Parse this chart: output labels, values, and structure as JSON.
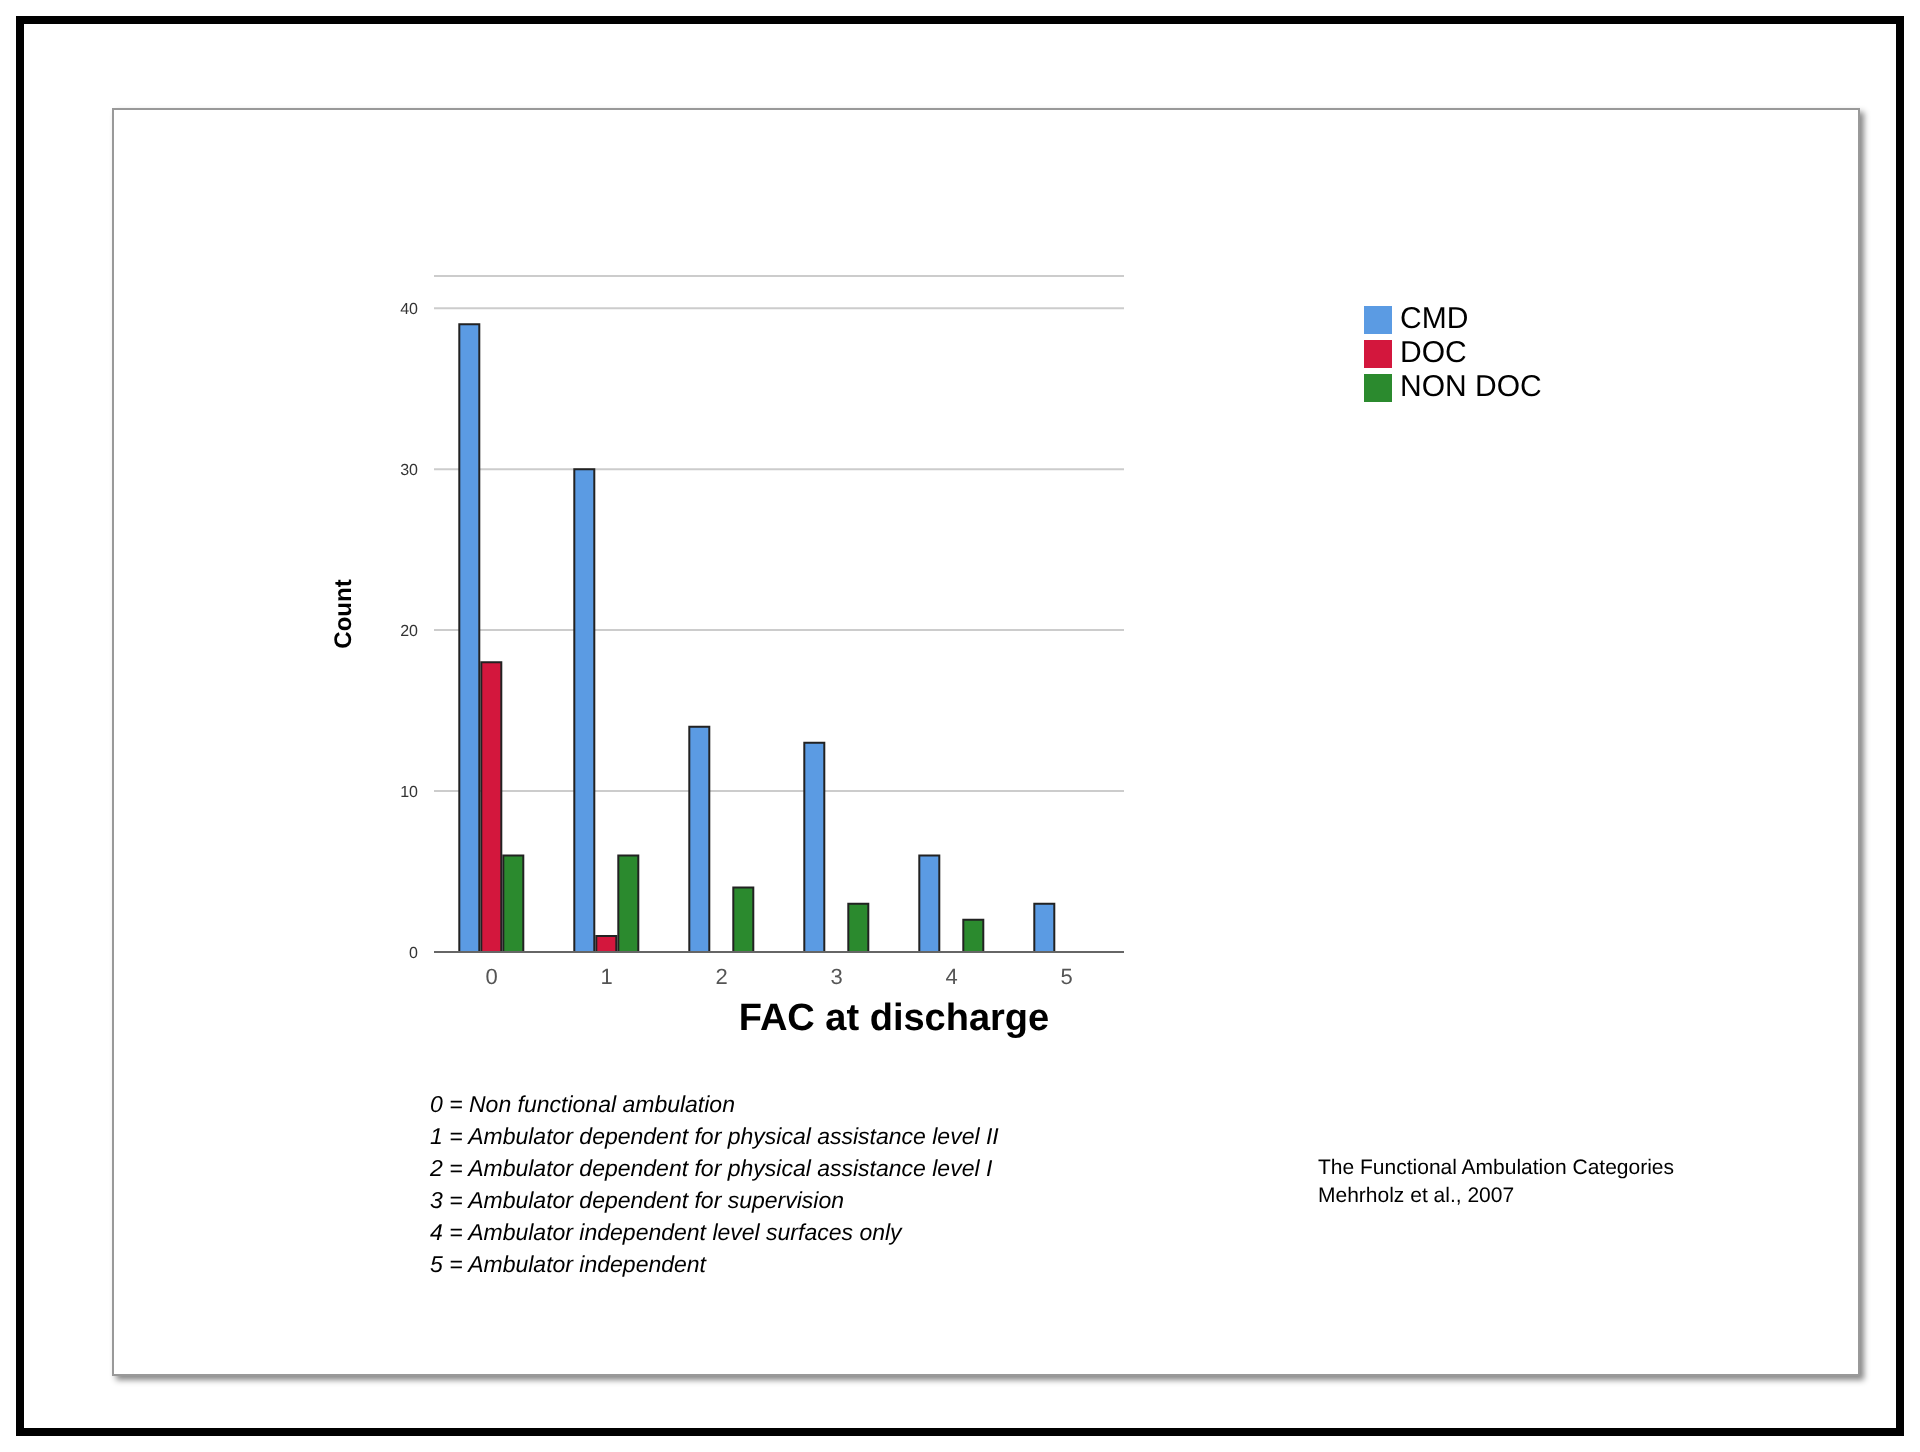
{
  "chart_data": {
    "type": "bar",
    "xlabel": "FAC at discharge",
    "ylabel": "Count",
    "categories": [
      "0",
      "1",
      "2",
      "3",
      "4",
      "5"
    ],
    "series": [
      {
        "name": "CMD",
        "color": "#5b9be3",
        "values": [
          39,
          30,
          14,
          13,
          6,
          3
        ]
      },
      {
        "name": "DOC",
        "color": "#d3173d",
        "values": [
          18,
          1,
          null,
          null,
          null,
          null
        ]
      },
      {
        "name": "NON DOC",
        "color": "#2b8a2e",
        "values": [
          6,
          6,
          4,
          3,
          2,
          null
        ]
      }
    ],
    "ylim": [
      0,
      42
    ],
    "yticks": [
      0,
      10,
      20,
      30,
      40
    ],
    "grid": "y",
    "legend": "top right",
    "annotations": [
      "0 = Non functional ambulation",
      "1 = Ambulator dependent for physical assistance level II",
      "2 = Ambulator dependent for physical assistance level I",
      "3 = Ambulator dependent for supervision",
      "4 = Ambulator independent level surfaces only",
      "5 = Ambulator independent",
      "The Functional Ambulation Categories\nMehrholz et al., 2007"
    ]
  }
}
